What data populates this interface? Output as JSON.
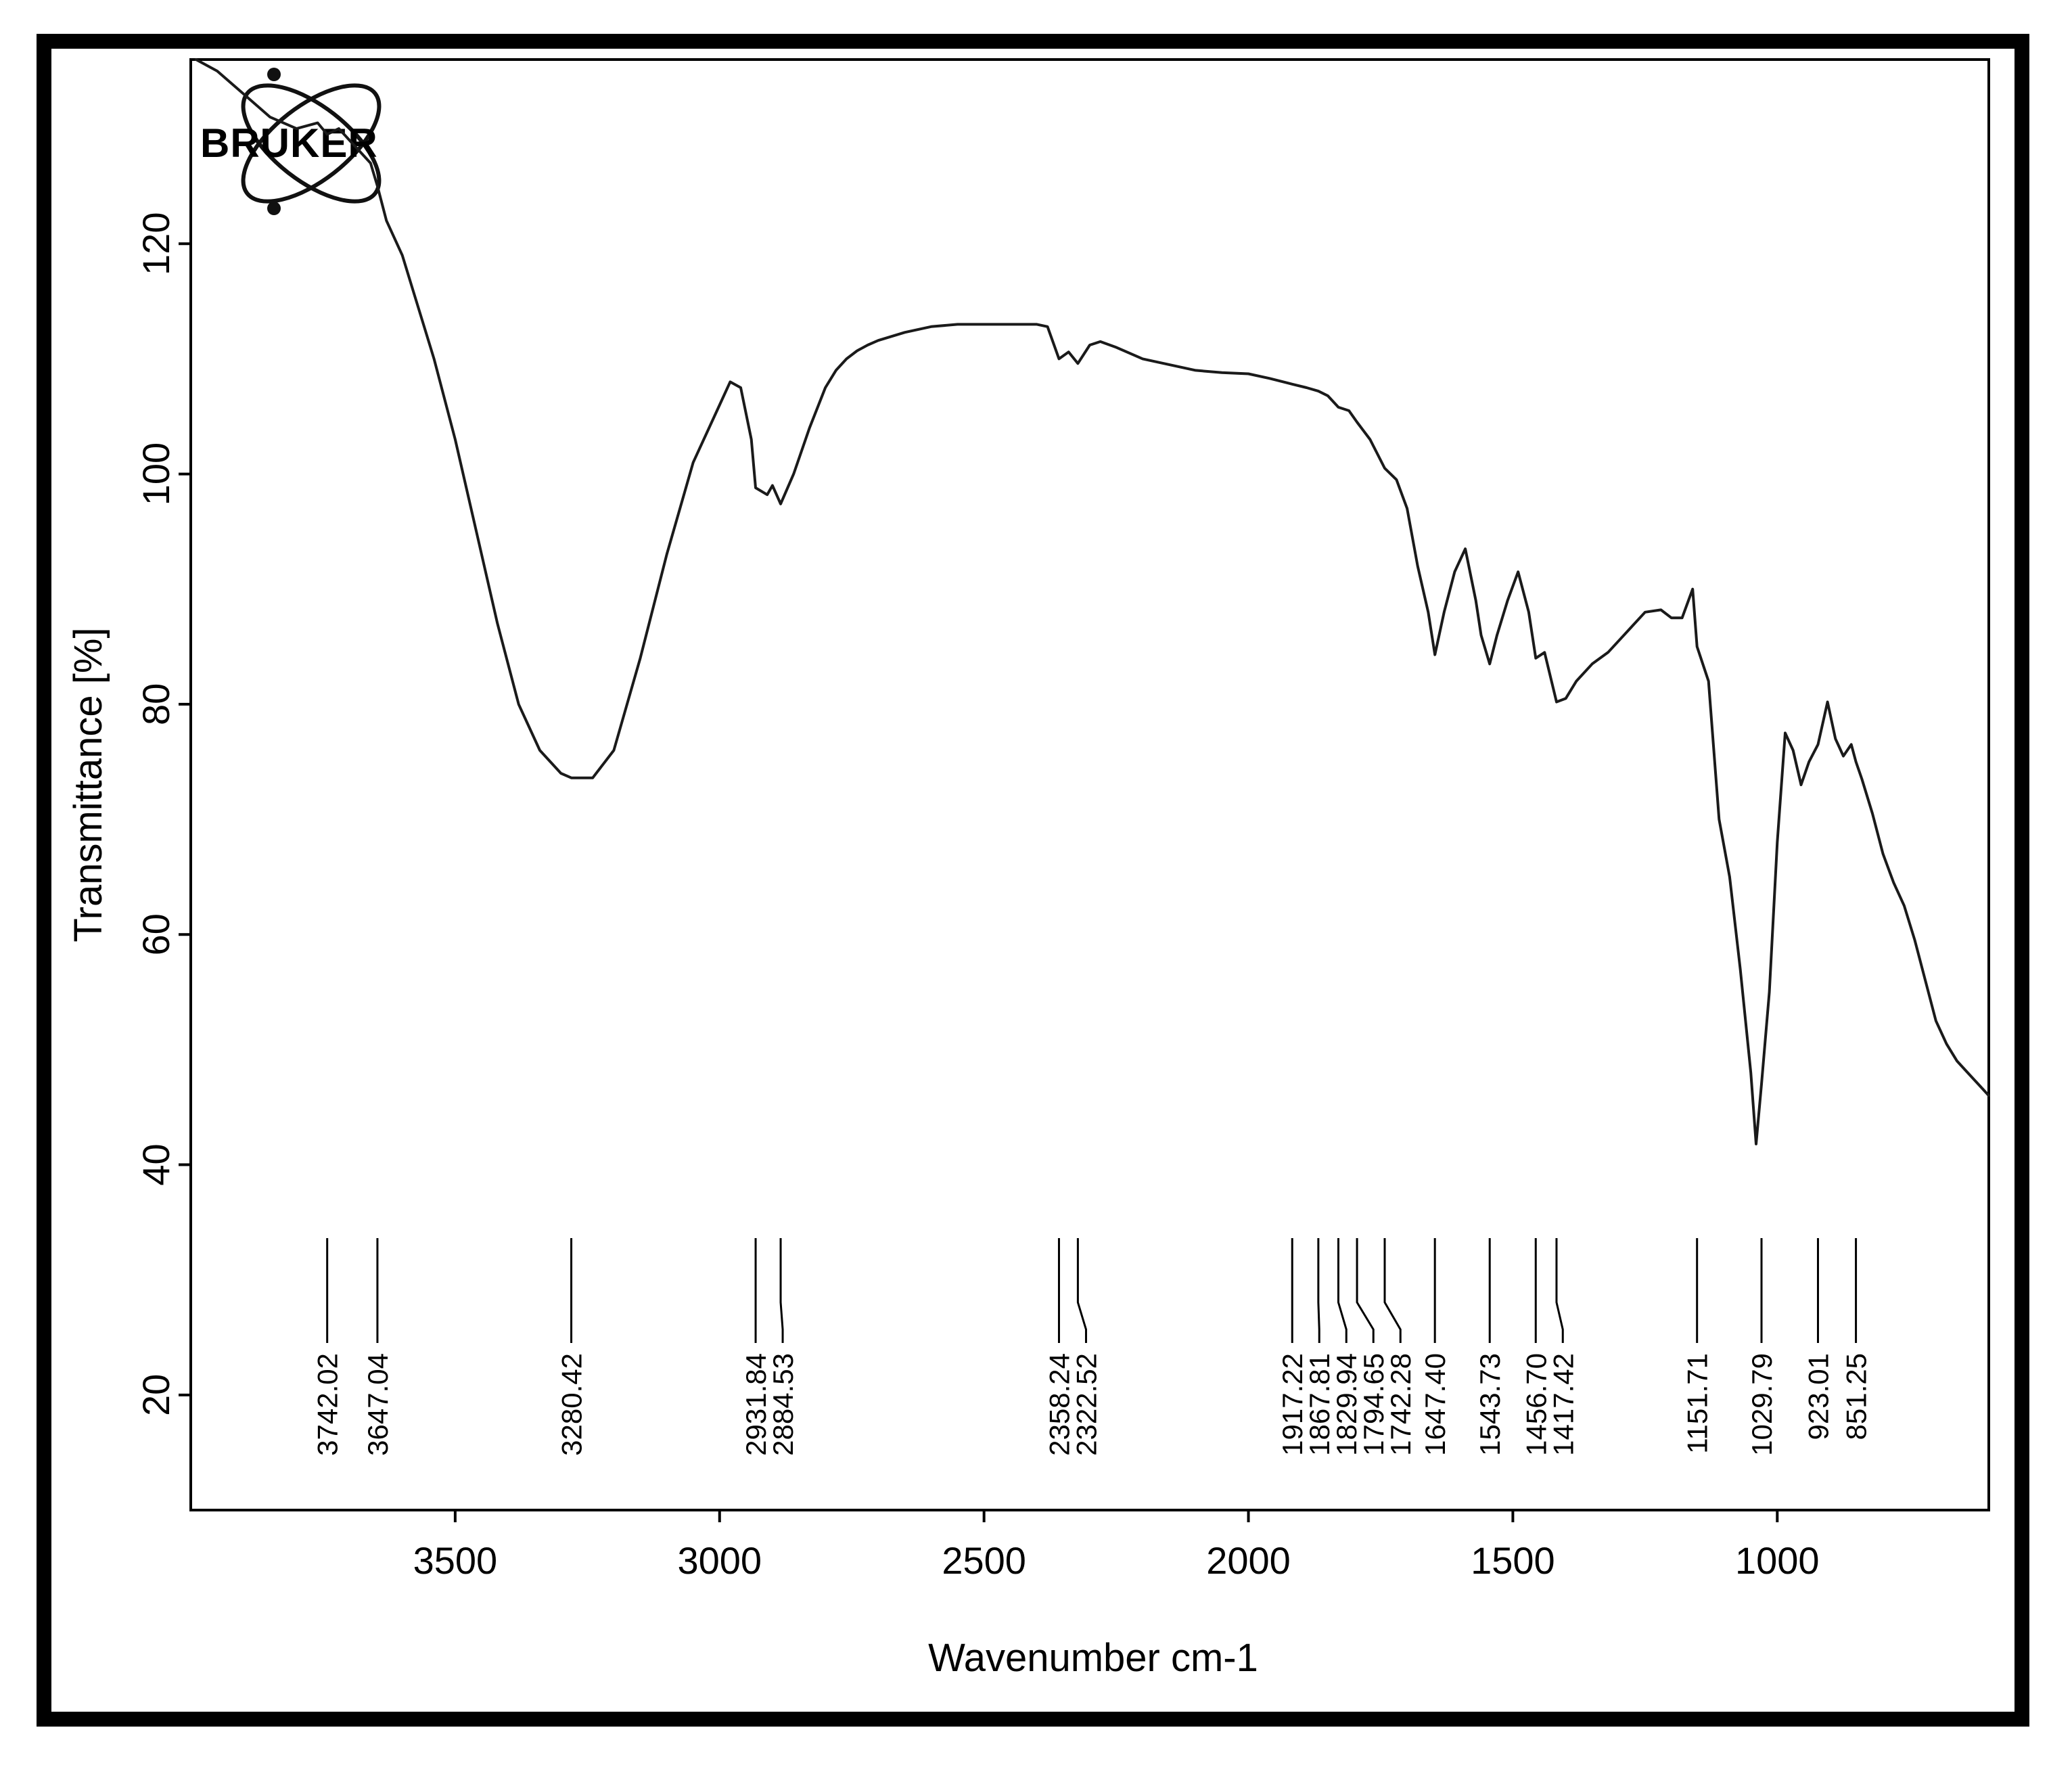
{
  "chart_data": {
    "type": "line",
    "xlabel": "Wavenumber cm-1",
    "ylabel": "Transmittance [%]",
    "xlim": [
      4000,
      600
    ],
    "ylim": [
      10,
      136
    ],
    "x_reversed": true,
    "grid": false,
    "logo": "BRUKER",
    "xticks": [
      {
        "value": 3500,
        "label": "3500"
      },
      {
        "value": 3000,
        "label": "3000"
      },
      {
        "value": 2500,
        "label": "2500"
      },
      {
        "value": 2000,
        "label": "2000"
      },
      {
        "value": 1500,
        "label": "1500"
      },
      {
        "value": 1000,
        "label": "1000"
      }
    ],
    "yticks": [
      {
        "value": 120,
        "label": "120"
      },
      {
        "value": 100,
        "label": "100"
      },
      {
        "value": 80,
        "label": "80"
      },
      {
        "value": 60,
        "label": "60"
      },
      {
        "value": 40,
        "label": "40"
      },
      {
        "value": 20,
        "label": "20"
      }
    ],
    "series": [
      {
        "color": "#1a1a1a",
        "x": [
          3990,
          3950,
          3900,
          3850,
          3800,
          3760,
          3742,
          3720,
          3700,
          3680,
          3660,
          3647,
          3630,
          3600,
          3580,
          3560,
          3540,
          3500,
          3460,
          3420,
          3380,
          3340,
          3300,
          3280,
          3240,
          3200,
          3150,
          3100,
          3050,
          3000,
          2980,
          2960,
          2940,
          2931.84,
          2910,
          2900,
          2884.53,
          2860,
          2830,
          2800,
          2780,
          2760,
          2740,
          2720,
          2700,
          2650,
          2600,
          2550,
          2500,
          2450,
          2400,
          2380,
          2358.24,
          2340,
          2322.52,
          2300,
          2280,
          2250,
          2200,
          2150,
          2100,
          2050,
          2000,
          1960,
          1917.22,
          1890,
          1867.81,
          1850,
          1829.94,
          1810,
          1794.65,
          1770,
          1742.28,
          1720,
          1700,
          1680,
          1660,
          1647.4,
          1630,
          1610,
          1590,
          1570,
          1560,
          1543.73,
          1530,
          1510,
          1490,
          1470,
          1456.7,
          1440,
          1417.42,
          1400,
          1380,
          1350,
          1320,
          1290,
          1250,
          1220,
          1200,
          1180,
          1160,
          1151.71,
          1130,
          1110,
          1090,
          1070,
          1050,
          1040,
          1029.79,
          1015,
          1000,
          985,
          970,
          955,
          940,
          923.01,
          905,
          890,
          875,
          860,
          851.25,
          840,
          820,
          800,
          780,
          760,
          740,
          720,
          700,
          680,
          660,
          640,
          620,
          600
        ],
        "y": [
          136,
          135,
          133,
          131,
          130,
          130.5,
          129.5,
          130,
          129,
          128,
          127,
          125,
          122,
          119,
          116,
          113,
          110,
          103,
          95,
          87,
          80,
          76,
          74,
          73.6,
          73.6,
          76,
          84,
          93,
          101,
          106,
          108,
          107.5,
          103,
          98.8,
          98.2,
          99,
          97.4,
          100,
          104,
          107.5,
          109,
          110,
          110.7,
          111.2,
          111.6,
          112.3,
          112.8,
          113,
          113,
          113,
          113,
          112.8,
          110,
          110.6,
          109.6,
          111.2,
          111.5,
          111,
          110,
          109.5,
          109,
          108.8,
          108.7,
          108.3,
          107.8,
          107.5,
          107.2,
          106.8,
          105.8,
          105.5,
          104.5,
          103,
          100.5,
          99.5,
          97,
          92,
          88,
          84.3,
          88,
          91.5,
          93.5,
          89,
          86,
          83.5,
          86,
          89,
          91.5,
          88,
          84,
          84.5,
          80.2,
          80.5,
          82,
          83.5,
          84.5,
          86,
          88,
          88.2,
          87.5,
          87.5,
          90,
          85,
          82,
          70,
          65,
          57,
          48,
          41.8,
          47,
          55,
          68,
          77.5,
          76,
          73,
          75,
          76.5,
          80.2,
          77,
          75.5,
          76.5,
          75,
          73.5,
          70.5,
          67,
          64.5,
          62.5,
          59.5,
          56,
          52.5,
          50.5,
          49,
          48,
          47,
          46
        ]
      }
    ],
    "peaks": [
      {
        "value": 3742.02,
        "label": "3742.02"
      },
      {
        "value": 3647.04,
        "label": "3647.04"
      },
      {
        "value": 3280.42,
        "label": "3280.42"
      },
      {
        "value": 2931.84,
        "label": "2931.84"
      },
      {
        "value": 2884.53,
        "label": "2884.53"
      },
      {
        "value": 2358.24,
        "label": "2358.24"
      },
      {
        "value": 2322.52,
        "label": "2322.52"
      },
      {
        "value": 1917.22,
        "label": "1917.22"
      },
      {
        "value": 1867.81,
        "label": "1867.81"
      },
      {
        "value": 1829.94,
        "label": "1829.94"
      },
      {
        "value": 1794.65,
        "label": "1794.65"
      },
      {
        "value": 1742.28,
        "label": "1742.28"
      },
      {
        "value": 1647.4,
        "label": "1647.40"
      },
      {
        "value": 1543.73,
        "label": "1543.73"
      },
      {
        "value": 1456.7,
        "label": "1456.70"
      },
      {
        "value": 1417.42,
        "label": "1417.42"
      },
      {
        "value": 1151.71,
        "label": "1151.71"
      },
      {
        "value": 1029.79,
        "label": "1029.79"
      },
      {
        "value": 923.01,
        "label": "923.01"
      },
      {
        "value": 851.25,
        "label": "851.25"
      }
    ]
  }
}
